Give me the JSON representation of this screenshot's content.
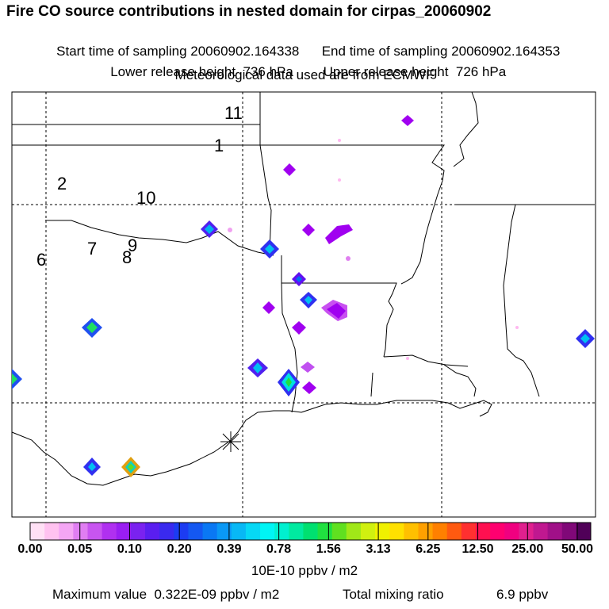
{
  "header": {
    "title": "Fire CO source contributions in nested domain for cirpas_20060902",
    "start_time": "Start time of sampling 20060902.164338",
    "end_time": "End time of sampling 20060902.164353",
    "lower_height": "Lower release height  736 hPa",
    "upper_height": "Upper release height  726 hPa",
    "met_data": "Meteorological data used are from ECMWF"
  },
  "map": {
    "labels": [
      "11",
      "1",
      "2",
      "10",
      "6",
      "7",
      "9",
      "8"
    ],
    "release_marker": "star-cross",
    "colors": {
      "coast": "#000000",
      "grid": "#000000"
    }
  },
  "colorbar": {
    "ticks": [
      "0.00",
      "0.05",
      "0.10",
      "0.20",
      "0.39",
      "0.78",
      "1.56",
      "3.13",
      "6.25",
      "12.50",
      "25.00",
      "50.00"
    ],
    "colors": [
      "#ffe0f5",
      "#ffc2f0",
      "#f4a6f4",
      "#e07ef2",
      "#c855f0",
      "#b030f0",
      "#9a1ef2",
      "#7a22f0",
      "#5a1ef0",
      "#3a2aef",
      "#1c3cf2",
      "#1458f2",
      "#0a78f4",
      "#0a98f5",
      "#08b8f5",
      "#06d8f5",
      "#00f5f5",
      "#00f0d0",
      "#00eaa0",
      "#00e070",
      "#20e040",
      "#60e020",
      "#a0e818",
      "#d0f010",
      "#f0f000",
      "#ffe000",
      "#ffc000",
      "#ffa000",
      "#ff8000",
      "#ff5a10",
      "#ff3030",
      "#ff1050",
      "#ff0070",
      "#f00080",
      "#e0208e",
      "#c01890",
      "#a01088",
      "#800878",
      "#500058"
    ],
    "unit": "10E-10 ppbv / m2"
  },
  "footer": {
    "max_value": "Maximum value  0.322E-09 ppbv / m2",
    "total_mixing": "Total mixing ratio",
    "total_value": "6.9 ppbv"
  }
}
